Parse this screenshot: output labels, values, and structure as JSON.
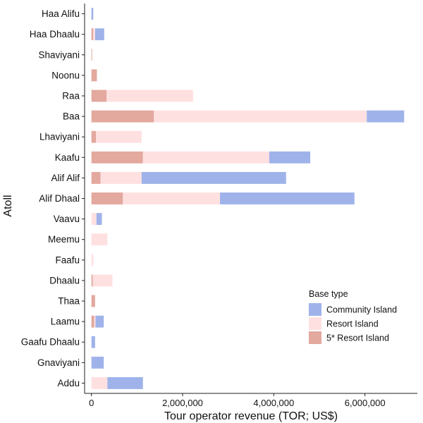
{
  "chart_data": {
    "type": "bar",
    "orientation": "horizontal",
    "stacked": true,
    "xlabel": "Tour operator revenue (TOR; US$)",
    "ylabel": "Atoll",
    "xlim": [
      -150000,
      7150000
    ],
    "xticks": [
      0,
      2000000,
      4000000,
      6000000
    ],
    "xtick_labels": [
      "0",
      "2,000,000",
      "4,000,000",
      "6,000,000"
    ],
    "grid": false,
    "legend": {
      "title": "Base type",
      "position": "right-inside-bottom"
    },
    "categories": [
      "Haa Alifu",
      "Haa Dhaalu",
      "Shaviyani",
      "Noonu",
      "Raa",
      "Baa",
      "Lhaviyani",
      "Kaafu",
      "Alif Alif",
      "Alif Dhaal",
      "Vaavu",
      "Meemu",
      "Faafu",
      "Dhaalu",
      "Thaa",
      "Laamu",
      "Gaafu Dhaalu",
      "Gnaviyani",
      "Addu"
    ],
    "series": [
      {
        "name": "5* Resort Island",
        "color": "#E3A89E",
        "values": [
          0,
          40000,
          15000,
          120000,
          330000,
          1370000,
          100000,
          1130000,
          200000,
          690000,
          0,
          0,
          0,
          30000,
          80000,
          60000,
          0,
          0,
          0
        ]
      },
      {
        "name": "Resort Island",
        "color": "#FFE0E0",
        "values": [
          0,
          40000,
          0,
          0,
          1900000,
          4670000,
          1000000,
          2770000,
          900000,
          2130000,
          110000,
          350000,
          40000,
          430000,
          0,
          30000,
          0,
          0,
          350000
        ]
      },
      {
        "name": "Community Island",
        "color": "#9FB3EA",
        "values": [
          40000,
          200000,
          0,
          0,
          0,
          820000,
          0,
          900000,
          3170000,
          2950000,
          120000,
          0,
          0,
          0,
          0,
          180000,
          80000,
          270000,
          780000
        ]
      }
    ],
    "legend_order": [
      "Community Island",
      "Resort Island",
      "5* Resort Island"
    ]
  }
}
